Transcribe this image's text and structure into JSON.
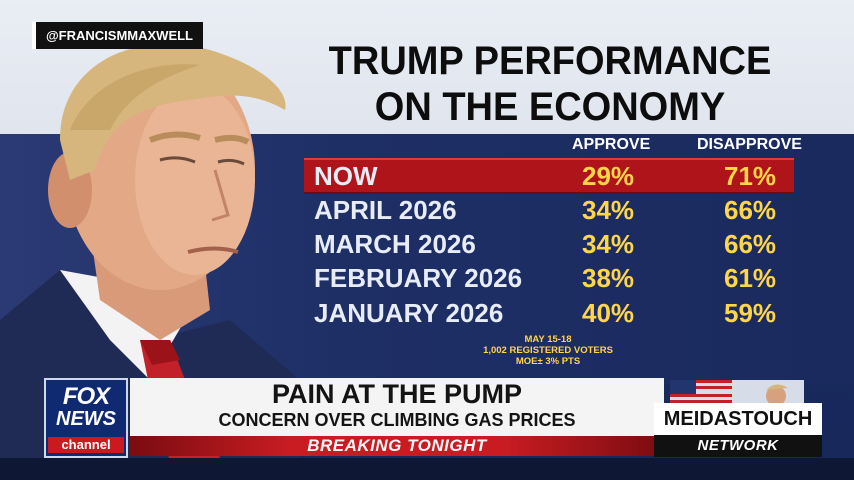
{
  "overlay": {
    "handle": "@FRANCISMMAXWELL"
  },
  "graphic": {
    "title_line1": "TRUMP PERFORMANCE",
    "title_line2": "ON THE ECONOMY",
    "columns": {
      "approve": "APPROVE",
      "disapprove": "DISAPPROVE"
    },
    "rows": [
      {
        "label": "NOW",
        "approve": "29%",
        "disapprove": "71%"
      },
      {
        "label": "APRIL 2026",
        "approve": "34%",
        "disapprove": "66%"
      },
      {
        "label": "MARCH 2026",
        "approve": "34%",
        "disapprove": "66%"
      },
      {
        "label": "FEBRUARY 2026",
        "approve": "38%",
        "disapprove": "61%"
      },
      {
        "label": "JANUARY 2026",
        "approve": "40%",
        "disapprove": "59%"
      }
    ],
    "note": {
      "line1": "MAY 15-18",
      "line2": "1,002 REGISTERED VOTERS",
      "line3": "MOE± 3% PTS"
    }
  },
  "lower_third": {
    "headline": "PAIN AT THE PUMP",
    "subhead": "CONCERN OVER CLIMBING GAS PRICES",
    "breaking": "BREAKING TONIGHT"
  },
  "fox_logo": {
    "line1": "FOX",
    "line2": "NEWS",
    "line3": "channel"
  },
  "network_logo": {
    "line1": "MEIDASTOUCH",
    "line2": "NETWORK"
  },
  "colors": {
    "accent_red": "#b0141b",
    "value_yellow": "#ffd64a",
    "navy": "#1d2e63"
  }
}
